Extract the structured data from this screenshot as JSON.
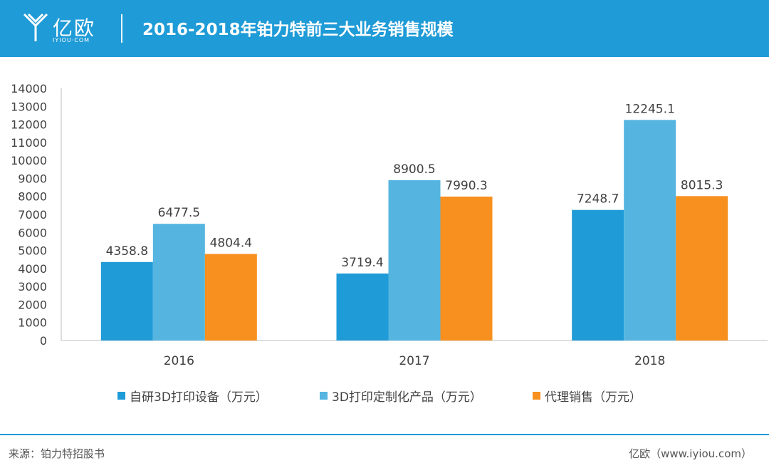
{
  "header": {
    "logo_text": "亿欧",
    "logo_subtext": "IYIOU·COM",
    "title": "2016-2018年铂力特前三大业务销售规模"
  },
  "colors": {
    "header_bg": "#1f9bd7",
    "series_1": "#1f9bd7",
    "series_2": "#55b5e0",
    "series_3": "#f7901e"
  },
  "chart_data": {
    "type": "bar",
    "title": "",
    "xlabel": "",
    "ylabel": "",
    "categories": [
      "2016",
      "2017",
      "2018"
    ],
    "series": [
      {
        "name": "自研3D打印设备（万元）",
        "values": [
          4358.8,
          3719.4,
          7248.7
        ]
      },
      {
        "name": "3D打印定制化产品（万元）",
        "values": [
          6477.5,
          8900.5,
          12245.1
        ]
      },
      {
        "name": "代理销售（万元）",
        "values": [
          4804.4,
          7990.3,
          8015.3
        ]
      }
    ],
    "ylim": [
      0,
      14000
    ],
    "ytick_step": 1000,
    "grid": false,
    "legend_position": "bottom"
  },
  "footer": {
    "source": "来源：铂力特招股书",
    "credit": "亿欧（www.iyiou.com）"
  }
}
